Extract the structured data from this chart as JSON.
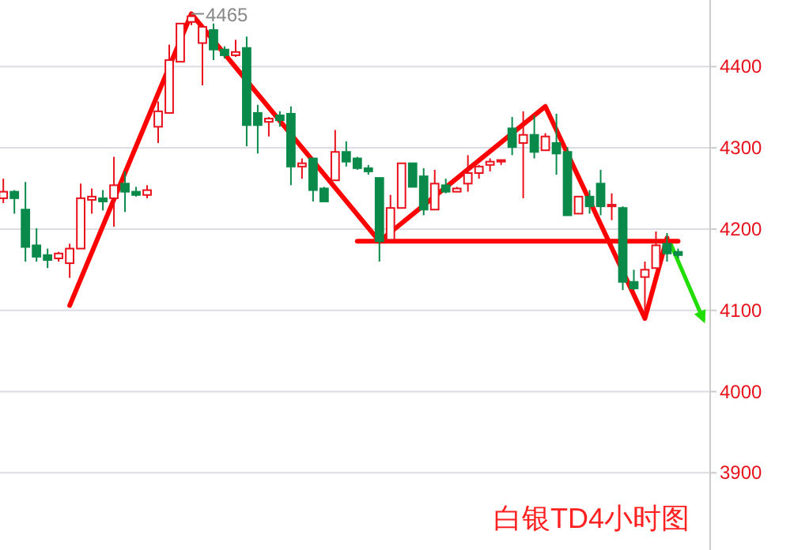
{
  "chart_data": {
    "type": "candlestick",
    "title": "白银TD4小时图",
    "categories": [
      null,
      null,
      null,
      null,
      null,
      null,
      null,
      null,
      null,
      null,
      null,
      null,
      null,
      null,
      null,
      null,
      null,
      null,
      null,
      null,
      null,
      null,
      null,
      null,
      null,
      null,
      null,
      null,
      null,
      null,
      null,
      null,
      null,
      null,
      null,
      null,
      null,
      null,
      null,
      null,
      null,
      null,
      null,
      null,
      null,
      null,
      null,
      null,
      null,
      null,
      null,
      null,
      null,
      null,
      null,
      null,
      null,
      null,
      null,
      null,
      null,
      null
    ],
    "ohlc": [
      [
        4238,
        4262,
        4232,
        4246
      ],
      [
        4246,
        4248,
        4219,
        4238
      ],
      [
        4224,
        4258,
        4160,
        4178
      ],
      [
        4180,
        4201,
        4160,
        4166
      ],
      [
        4168,
        4176,
        4152,
        4162
      ],
      [
        4164,
        4172,
        4160,
        4170
      ],
      [
        4158,
        4182,
        4140,
        4176
      ],
      [
        4176,
        4256,
        4176,
        4238
      ],
      [
        4236,
        4250,
        4219,
        4240
      ],
      [
        4238,
        4248,
        4223,
        4234
      ],
      [
        4238,
        4289,
        4203,
        4254
      ],
      [
        4256,
        4271,
        4221,
        4246
      ],
      [
        4246,
        4252,
        4240,
        4242
      ],
      [
        4242,
        4254,
        4238,
        4248
      ],
      [
        4326,
        4357,
        4306,
        4345
      ],
      [
        4343,
        4427,
        4343,
        4408
      ],
      [
        4406,
        4453,
        4406,
        4453
      ],
      [
        4455,
        4465,
        4451,
        4462
      ],
      [
        4429,
        4449,
        4377,
        4449
      ],
      [
        4445,
        4453,
        4408,
        4421
      ],
      [
        4421,
        4425,
        4410,
        4414
      ],
      [
        4414,
        4433,
        4412,
        4418
      ],
      [
        4423,
        4437,
        4302,
        4328
      ],
      [
        4343,
        4353,
        4293,
        4328
      ],
      [
        4332,
        4338,
        4314,
        4336
      ],
      [
        4340,
        4345,
        4326,
        4334
      ],
      [
        4342,
        4351,
        4254,
        4277
      ],
      [
        4277,
        4287,
        4262,
        4281
      ],
      [
        4287,
        4287,
        4234,
        4248
      ],
      [
        4250,
        4252,
        4234,
        4234
      ],
      [
        4260,
        4322,
        4260,
        4295
      ],
      [
        4295,
        4308,
        4277,
        4283
      ],
      [
        4287,
        4289,
        4273,
        4275
      ],
      [
        4275,
        4279,
        4267,
        4271
      ],
      [
        4263,
        4263,
        4160,
        4185
      ],
      [
        4187,
        4242,
        4187,
        4226
      ],
      [
        4226,
        4281,
        4226,
        4281
      ],
      [
        4281,
        4281,
        4252,
        4252
      ],
      [
        4265,
        4275,
        4217,
        4224
      ],
      [
        4224,
        4273,
        4224,
        4256
      ],
      [
        4254,
        4262,
        4244,
        4246
      ],
      [
        4246,
        4252,
        4246,
        4250
      ],
      [
        4256,
        4291,
        4246,
        4269
      ],
      [
        4269,
        4279,
        4262,
        4277
      ],
      [
        4279,
        4287,
        4271,
        4283
      ],
      [
        4283,
        4285,
        4279,
        4285
      ],
      [
        4324,
        4338,
        4291,
        4301
      ],
      [
        4306,
        4345,
        4238,
        4316
      ],
      [
        4316,
        4340,
        4287,
        4295
      ],
      [
        4297,
        4318,
        4297,
        4314
      ],
      [
        4306,
        4342,
        4267,
        4293
      ],
      [
        4295,
        4301,
        4217,
        4217
      ],
      [
        4219,
        4240,
        4219,
        4240
      ],
      [
        4240,
        4248,
        4219,
        4228
      ],
      [
        4256,
        4273,
        4217,
        4228
      ],
      [
        4228,
        4244,
        4211,
        4230
      ],
      [
        4226,
        4228,
        4125,
        4135
      ],
      [
        4135,
        4150,
        4125,
        4127
      ],
      [
        4141,
        4160,
        4098,
        4150
      ],
      [
        4152,
        4197,
        4152,
        4180
      ],
      [
        4182,
        4195,
        4160,
        4170
      ],
      [
        4172,
        4176,
        4164,
        4168
      ]
    ],
    "colors": [
      "#e8101a",
      "#0a8a4a",
      "#0a8a4a",
      "#0a8a4a",
      "#0a8a4a",
      "#e8101a",
      "#e8101a",
      "#e8101a",
      "#e8101a",
      "#0a8a4a",
      "#e8101a",
      "#0a8a4a",
      "#0a8a4a",
      "#e8101a",
      "#e8101a",
      "#e8101a",
      "#e8101a",
      "#e8101a",
      "#e8101a",
      "#0a8a4a",
      "#0a8a4a",
      "#e8101a",
      "#0a8a4a",
      "#0a8a4a",
      "#e8101a",
      "#0a8a4a",
      "#0a8a4a",
      "#e8101a",
      "#0a8a4a",
      "#0a8a4a",
      "#e8101a",
      "#0a8a4a",
      "#0a8a4a",
      "#0a8a4a",
      "#0a8a4a",
      "#e8101a",
      "#e8101a",
      "#0a8a4a",
      "#0a8a4a",
      "#e8101a",
      "#0a8a4a",
      "#e8101a",
      "#e8101a",
      "#e8101a",
      "#e8101a",
      "#e8101a",
      "#0a8a4a",
      "#e8101a",
      "#0a8a4a",
      "#e8101a",
      "#0a8a4a",
      "#0a8a4a",
      "#e8101a",
      "#0a8a4a",
      "#0a8a4a",
      "#e8101a",
      "#0a8a4a",
      "#0a8a4a",
      "#e8101a",
      "#e8101a",
      "#0a8a4a",
      "#0a8a4a"
    ],
    "series": [
      {
        "type": "line",
        "color": "#ff0000",
        "values": [
          null,
          null,
          null,
          null,
          null,
          null,
          4106,
          null,
          null,
          null,
          null,
          null,
          null,
          null,
          null,
          null,
          null,
          4465,
          null,
          null,
          null,
          null,
          null,
          null,
          null,
          null,
          null,
          null,
          null,
          null,
          null,
          null,
          null,
          null,
          4185,
          null,
          null,
          null,
          null,
          null,
          null,
          null,
          null,
          null,
          null,
          null,
          null,
          null,
          null,
          4351,
          null,
          null,
          null,
          null,
          null,
          null,
          null,
          null,
          4090,
          null,
          4189,
          null
        ]
      },
      {
        "type": "line",
        "color": "#ff0000",
        "values": [
          null,
          null,
          null,
          null,
          null,
          null,
          null,
          null,
          null,
          null,
          null,
          null,
          null,
          null,
          null,
          null,
          null,
          null,
          null,
          null,
          null,
          null,
          null,
          null,
          null,
          null,
          null,
          null,
          null,
          null,
          null,
          null,
          4185,
          null,
          null,
          null,
          null,
          null,
          null,
          null,
          null,
          null,
          null,
          null,
          null,
          null,
          null,
          null,
          null,
          null,
          null,
          null,
          null,
          null,
          null,
          null,
          null,
          null,
          null,
          null,
          null,
          4185
        ]
      }
    ],
    "annotations": [
      "4465"
    ],
    "ylim": [
      3805,
      4482
    ],
    "yticks": [
      3900,
      4000,
      4100,
      4200,
      4300,
      4400
    ],
    "grid": "y"
  }
}
